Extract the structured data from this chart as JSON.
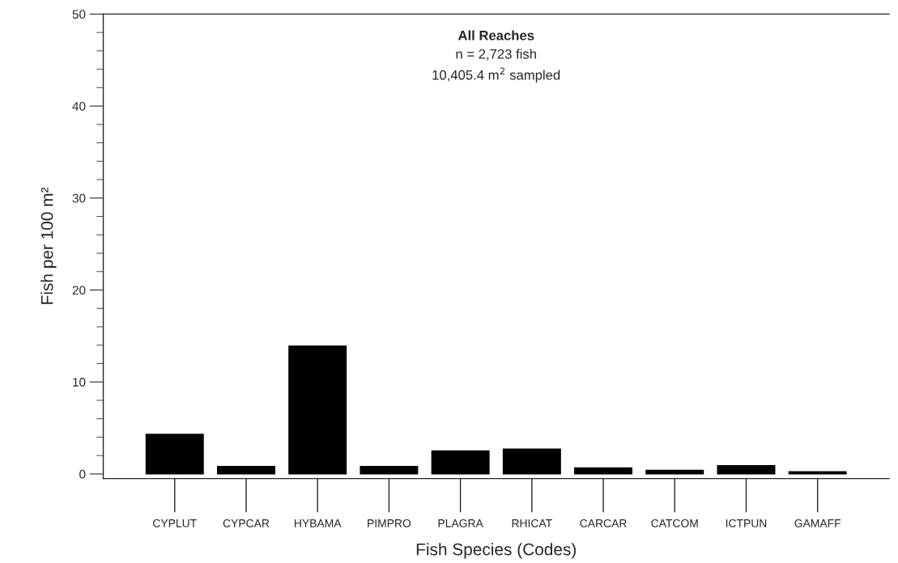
{
  "chart_data": {
    "type": "bar",
    "title": "All Reaches",
    "annotations": [
      "n = 2,723 fish",
      "10,405.4 m$^{2}$ sampled"
    ],
    "xlabel": "Fish Species (Codes)",
    "ylabel": "Fish per 100 m²",
    "categories": [
      "CYPLUT",
      "CYPCAR",
      "HYBAMA",
      "PIMPRO",
      "PLAGRA",
      "RHICAT",
      "CARCAR",
      "CATCOM",
      "ICTPUN",
      "GAMAFF"
    ],
    "values": [
      4.3,
      0.8,
      13.9,
      0.8,
      2.5,
      2.7,
      0.65,
      0.4,
      0.9,
      0.25
    ],
    "color": "#000000",
    "ylim": [
      -0.5,
      50
    ],
    "yticks": [
      0,
      10,
      20,
      30,
      40,
      50
    ],
    "grid": false
  }
}
